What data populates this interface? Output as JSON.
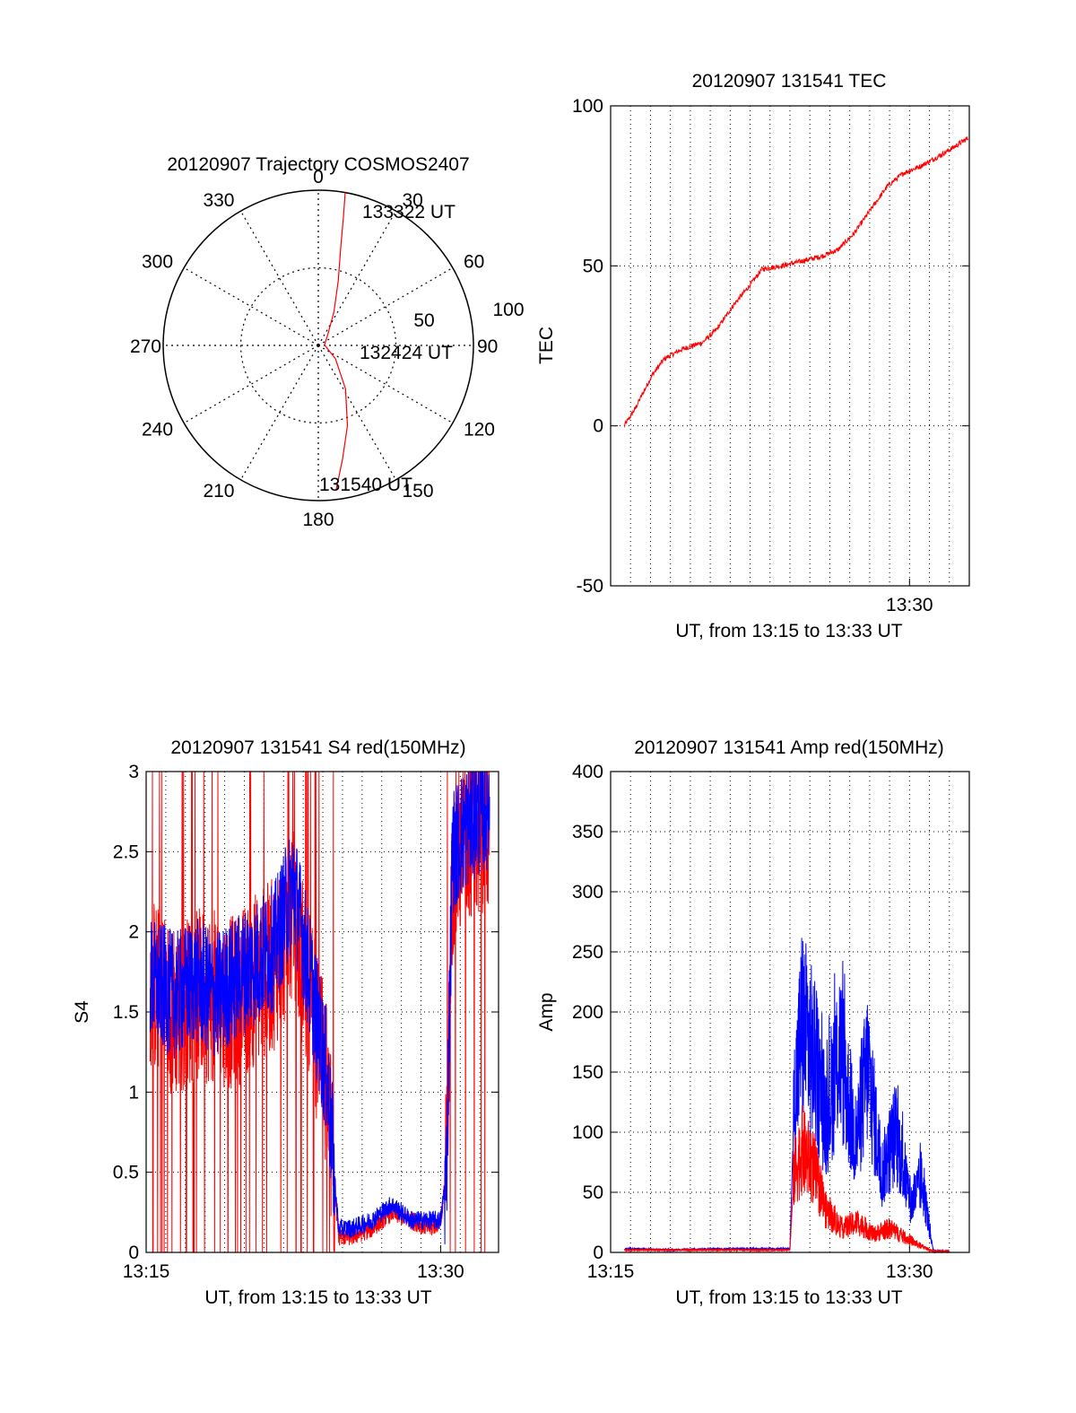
{
  "colors": {
    "red": "#ff0000",
    "blue": "#0000ff",
    "axis": "#000000",
    "grid": "#000000"
  },
  "polar": {
    "title": "20120907 Trajectory COSMOS2407",
    "azimuth_labels": [
      "0",
      "30",
      "60",
      "90",
      "120",
      "150",
      "180",
      "210",
      "240",
      "270",
      "300",
      "330"
    ],
    "ring_labels": [
      "50",
      "100"
    ],
    "time_labels": [
      "133322 UT",
      "132424 UT",
      "131540 UT"
    ],
    "chart_data": {
      "type": "scatter",
      "title": "20120907 Trajectory COSMOS2407",
      "r_range": [
        0,
        100
      ],
      "rings": [
        50,
        100
      ],
      "azimuth_step_deg": 30,
      "series": [
        {
          "color": "#ff0000",
          "points_az_r": [
            [
              173,
              94
            ],
            [
              168,
              75
            ],
            [
              160,
              55
            ],
            [
              148,
              33
            ],
            [
              128,
              14
            ],
            [
              85,
              4
            ],
            [
              42,
              9
            ],
            [
              25,
              24
            ],
            [
              17,
              44
            ],
            [
              13,
              64
            ],
            [
              11,
              85
            ],
            [
              10,
              100
            ]
          ]
        }
      ],
      "markers": [
        {
          "label": "131540 UT",
          "az": 173,
          "r": 94
        },
        {
          "label": "132424 UT",
          "az": 85,
          "r": 4
        },
        {
          "label": "133322 UT",
          "az": 10,
          "r": 100
        }
      ]
    }
  },
  "tec": {
    "title": "20120907 131541 TEC",
    "ylabel": "TEC",
    "xlabel": "UT, from 13:15 to 13:33 UT",
    "y_ticks": [
      "100",
      "50",
      "0",
      "-50"
    ],
    "x_ticks": [
      "13:30"
    ],
    "chart_data": {
      "type": "line",
      "title": "20120907 131541 TEC",
      "xlabel": "UT, from 13:15 to 13:33 UT",
      "ylabel": "TEC",
      "ylim": [
        -50,
        100
      ],
      "xlim_min": [
        15.0,
        33.0
      ],
      "grid": true,
      "series": [
        {
          "color": "#ff0000",
          "x_min": [
            15.68,
            16.2,
            16.6,
            17.1,
            17.7,
            18.6,
            19.6,
            20.3,
            21.2,
            22.0,
            22.6,
            23.6,
            24.6,
            25.6,
            26.4,
            27.2,
            28.1,
            28.9,
            29.7,
            30.5,
            31.4,
            32.2,
            32.95
          ],
          "values": [
            0,
            5,
            10,
            16,
            21,
            24,
            26,
            30,
            38,
            44,
            49,
            50,
            51.5,
            53,
            55,
            60,
            68,
            75,
            79,
            81,
            84,
            87,
            90
          ]
        }
      ]
    }
  },
  "s4": {
    "title": "20120907 131541 S4 red(150MHz)",
    "ylabel": "S4",
    "xlabel": "UT, from 13:15 to 13:33 UT",
    "y_ticks": [
      "3",
      "2.5",
      "2",
      "1.5",
      "1",
      "0.5",
      "0"
    ],
    "x_ticks": [
      "13:15",
      "13:30"
    ],
    "chart_data": {
      "type": "line",
      "title": "20120907 131541 S4 red(150MHz)",
      "xlabel": "UT, from 13:15 to 13:33 UT",
      "ylabel": "S4",
      "ylim": [
        0,
        3
      ],
      "xlim_min": [
        15.0,
        32.95
      ],
      "grid": true,
      "series": [
        {
          "color": "#ff0000",
          "x_min": [
            15.2,
            16.5,
            17.5,
            18.5,
            19.5,
            20.5,
            21.5,
            22.5,
            23.5,
            24.2,
            24.8,
            25.5,
            26.5,
            27.5,
            28.5,
            29.5,
            30.0,
            30.3,
            30.6,
            31.5,
            32.5
          ],
          "values": [
            1.7,
            1.5,
            1.6,
            1.6,
            1.55,
            1.7,
            1.8,
            2.1,
            1.5,
            1.0,
            0.1,
            0.1,
            0.15,
            0.25,
            0.2,
            0.15,
            0.2,
            0.5,
            2.4,
            2.6,
            2.7
          ]
        },
        {
          "color": "#0000ff",
          "x_min": [
            15.2,
            16.5,
            17.5,
            18.5,
            19.5,
            20.5,
            21.5,
            22.5,
            23.5,
            24.2,
            24.8,
            25.5,
            26.5,
            27.5,
            28.5,
            29.5,
            30.0,
            30.3,
            30.6,
            31.5,
            32.5
          ],
          "values": [
            1.7,
            1.6,
            1.7,
            1.6,
            1.7,
            1.8,
            1.9,
            2.3,
            1.6,
            1.1,
            0.15,
            0.15,
            0.2,
            0.3,
            0.2,
            0.2,
            0.2,
            0.5,
            2.5,
            2.7,
            2.8
          ]
        }
      ]
    }
  },
  "amp": {
    "title": "20120907 131541 Amp red(150MHz)",
    "ylabel": "Amp",
    "xlabel": "UT, from 13:15 to 13:33 UT",
    "y_ticks": [
      "400",
      "350",
      "300",
      "250",
      "200",
      "150",
      "100",
      "50",
      "0"
    ],
    "x_ticks": [
      "13:15",
      "13:30"
    ],
    "chart_data": {
      "type": "line",
      "title": "20120907 131541 Amp red(150MHz)",
      "xlabel": "UT, from 13:15 to 13:33 UT",
      "ylabel": "Amp",
      "ylim": [
        0,
        400
      ],
      "xlim_min": [
        15.0,
        33.0
      ],
      "grid": true,
      "series": [
        {
          "color": "#ff0000",
          "x_min": [
            15.7,
            20.0,
            24.0,
            24.2,
            24.6,
            25.2,
            25.8,
            26.6,
            27.4,
            28.2,
            29.0,
            29.8,
            30.6,
            31.2,
            32.0
          ],
          "values": [
            2,
            2,
            2,
            65,
            85,
            70,
            35,
            20,
            25,
            15,
            20,
            12,
            5,
            1,
            1
          ]
        },
        {
          "color": "#0000ff",
          "x_min": [
            15.7,
            18.0,
            21.0,
            24.0,
            24.2,
            24.6,
            25.2,
            25.8,
            26.5,
            27.3,
            27.9,
            28.6,
            29.3,
            30.1,
            30.6,
            31.2,
            32.0
          ],
          "values": [
            3,
            2,
            3,
            3,
            120,
            190,
            160,
            110,
            170,
            90,
            155,
            65,
            100,
            40,
            60,
            1,
            1
          ]
        }
      ]
    }
  }
}
